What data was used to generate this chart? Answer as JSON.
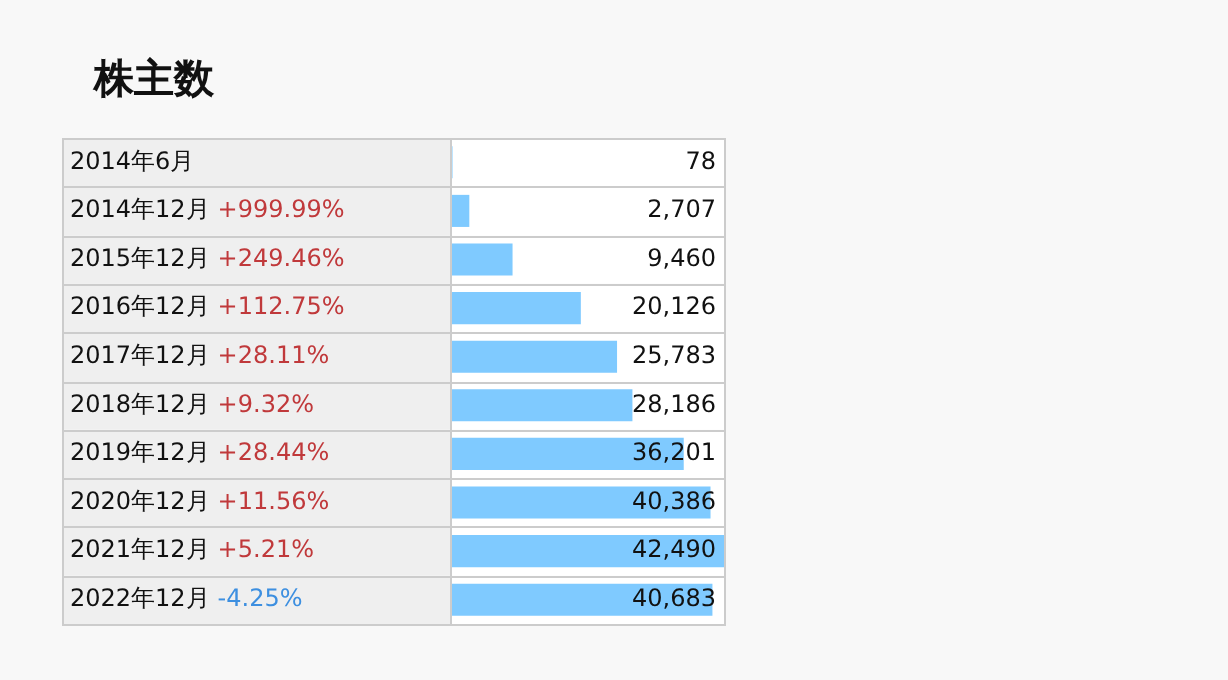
{
  "chart_data": {
    "type": "bar",
    "orientation": "horizontal",
    "title": "株主数",
    "categories": [
      "2014年6月",
      "2014年12月",
      "2015年12月",
      "2016年12月",
      "2017年12月",
      "2018年12月",
      "2019年12月",
      "2020年12月",
      "2021年12月",
      "2022年12月"
    ],
    "values": [
      78,
      2707,
      9460,
      20126,
      25783,
      28186,
      36201,
      40386,
      42490,
      40683
    ],
    "value_labels": [
      "78",
      "2,707",
      "9,460",
      "20,126",
      "25,783",
      "28,186",
      "36,201",
      "40,386",
      "42,490",
      "40,683"
    ],
    "color": "#7fcaff",
    "annotations": [
      "+999.99%",
      "+249.46%",
      "+112.75%",
      "+28.11%",
      "+9.32%",
      "+28.44%",
      "+11.56%",
      "+5.21%",
      "-4.25%"
    ]
  }
}
